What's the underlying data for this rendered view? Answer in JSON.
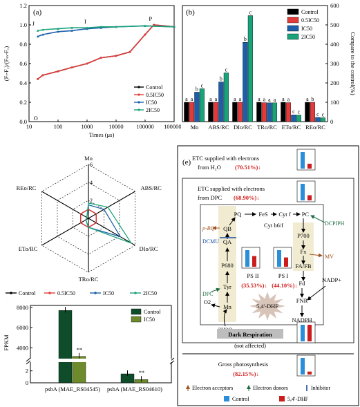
{
  "panel_a": {
    "label": "(a)",
    "ylabel": "(Fₜ-Fₒ)/(Fₘ-Fₒ)",
    "xlabel": "Times (μs)",
    "yticks": [
      "0.0",
      "0.2",
      "0.4",
      "0.6",
      "0.8",
      "1.0",
      "1.2"
    ],
    "xticks": [
      "10",
      "100",
      "1000",
      "10000",
      "100000",
      "1000000"
    ],
    "points": [
      "O",
      "J",
      "I",
      "P"
    ],
    "legend": [
      "Control",
      "0.5IC50",
      "IC50",
      "2IC50"
    ]
  },
  "panel_b": {
    "label": "(b)",
    "ylabel": "Compare to the control(%)",
    "yticks": [
      "0",
      "100",
      "200",
      "300",
      "400",
      "500",
      "600"
    ],
    "legend": [
      "Control",
      "0.5IC50",
      "IC50",
      "2IC50"
    ]
  },
  "panel_c": {
    "label": "(c)",
    "axes": [
      "Mo",
      "ABS/RC",
      "DIo/RC",
      "TRo/RC",
      "ETo/RC",
      "REo/RC"
    ],
    "rings": [
      "2",
      "4",
      "6"
    ],
    "legend": [
      "Control",
      "0.5IC50",
      "IC50",
      "2IC50"
    ]
  },
  "panel_d": {
    "label": "(d)",
    "ylabel": "FPKM",
    "yticks_top": [
      "4000",
      "6000",
      "8000"
    ],
    "yticks_bottom": [
      "0",
      "2"
    ],
    "legend": [
      "Control",
      "IC50"
    ],
    "sig": [
      "**",
      "**"
    ],
    "genes": [
      "psbA (MAE_RS04545)",
      "psbA (MAE_RS04610)"
    ]
  },
  "panel_e": {
    "label": "(e)",
    "h2o_title": "ETC supplied with electrons from H₂O",
    "h2o_pct": "(70.51%)",
    "dpc_title": "ETC supplied with electrons from DPC",
    "dpc_pct": "(68.90%)",
    "nodes": {
      "pq": "PQ",
      "fes": "FeS",
      "cytf": "Cyt f",
      "pc": "PC",
      "cytb6f": "Cyt b6/f",
      "qb": "QB",
      "qa": "QA",
      "p680": "P680",
      "tyr": "Tyr",
      "mn": "Mn",
      "p700": "P700",
      "fx": "Fx",
      "fafb": "FA/FB",
      "fd": "Fd",
      "fnr": "FNR",
      "nadph": "NADPH",
      "nadp": "NADP+",
      "o2": "O2",
      "h2o": "2H2O"
    },
    "psii": "PS II",
    "psii_pct": "(35.53%)",
    "psi": "PS I",
    "psi_pct": "(44.10%)",
    "compound": "5,4'-DHF",
    "labels": {
      "pbq": "p-BQ",
      "dcmu": "DCMU",
      "dpc": "DPC",
      "dcpiph": "DCPIPH",
      "mv": "MV"
    },
    "dark": "Dark Respiration",
    "dark_note": "(not affected)",
    "gross": "Gross photosynthesis",
    "gross_pct": "(82.15%)",
    "key": [
      "Electron acceptors",
      "Electron donors",
      "Inhibitor",
      "Control",
      "5,4'-DHF"
    ]
  },
  "chart_data": [
    {
      "type": "line",
      "title": "",
      "xlabel": "Times (μs)",
      "ylabel": "(Ft-Fo)/(Fm-Fo)",
      "xscale": "log",
      "xlim": [
        10,
        1000000
      ],
      "ylim": [
        0,
        1.2
      ],
      "series": [
        {
          "name": "Control",
          "x": [
            20,
            30,
            100,
            300,
            1000,
            3000,
            10000,
            30000,
            100000,
            200000,
            1000000
          ],
          "values": [
            0.44,
            0.48,
            0.52,
            0.56,
            0.6,
            0.66,
            0.68,
            0.72,
            0.9,
            1.0,
            0.98
          ]
        },
        {
          "name": "0.5IC50",
          "x": [
            20,
            30,
            100,
            300,
            1000,
            3000,
            10000,
            30000,
            100000,
            200000,
            1000000
          ],
          "values": [
            0.44,
            0.48,
            0.52,
            0.56,
            0.6,
            0.66,
            0.68,
            0.72,
            0.9,
            1.0,
            0.98
          ]
        },
        {
          "name": "IC50",
          "x": [
            20,
            30,
            100,
            300,
            1000,
            3000,
            10000,
            100000,
            1000000
          ],
          "values": [
            0.88,
            0.9,
            0.93,
            0.94,
            0.96,
            0.97,
            0.98,
            0.99,
            0.98
          ]
        },
        {
          "name": "2IC50",
          "x": [
            20,
            30,
            100,
            300,
            1000,
            3000,
            10000,
            100000,
            1000000
          ],
          "values": [
            0.94,
            0.95,
            0.96,
            0.97,
            0.97,
            0.98,
            0.98,
            0.99,
            0.98
          ]
        }
      ]
    },
    {
      "type": "bar",
      "categories": [
        "Mo",
        "ABS/RC",
        "DIo/RC",
        "TRo/RC",
        "ETo/RC",
        "REo/RC"
      ],
      "ylabel": "Compare to the control(%)",
      "ylim": [
        0,
        600
      ],
      "series": [
        {
          "name": "Control",
          "values": [
            100,
            100,
            100,
            100,
            100,
            100
          ]
        },
        {
          "name": "0.5IC50",
          "values": [
            100,
            100,
            100,
            98,
            98,
            100
          ]
        },
        {
          "name": "IC50",
          "values": [
            152,
            205,
            410,
            97,
            35,
            22
          ]
        },
        {
          "name": "2IC50",
          "values": [
            170,
            252,
            548,
            97,
            34,
            20
          ]
        }
      ],
      "letters": [
        [
          "a",
          "a",
          "b",
          "c"
        ],
        [
          "a",
          "a",
          "b",
          "c"
        ],
        [
          "a",
          "a",
          "b",
          "c"
        ],
        [
          "a",
          "a",
          "a",
          "a"
        ],
        [
          "a",
          "a",
          "c",
          "c"
        ],
        [
          "a",
          "b",
          "c",
          "c"
        ]
      ]
    },
    {
      "type": "radar",
      "categories": [
        "Mo",
        "ABS/RC",
        "DIo/RC",
        "TRo/RC",
        "ETo/RC",
        "REo/RC"
      ],
      "rmax": 6,
      "series": [
        {
          "name": "Control",
          "values": [
            1,
            1,
            1,
            1,
            1,
            1
          ]
        },
        {
          "name": "0.5IC50",
          "values": [
            1,
            1,
            1,
            1,
            1,
            1
          ]
        },
        {
          "name": "IC50",
          "values": [
            1.5,
            2.0,
            4.1,
            1,
            0.35,
            0.2
          ]
        },
        {
          "name": "2IC50",
          "values": [
            1.7,
            2.5,
            5.5,
            1,
            0.34,
            0.2
          ]
        }
      ]
    },
    {
      "type": "bar",
      "categories": [
        "psbA (MAE_RS04545)",
        "psbA (MAE_RS04610)"
      ],
      "ylabel": "FPKM",
      "series": [
        {
          "name": "Control",
          "values": [
            7700,
            1.5
          ]
        },
        {
          "name": "IC50",
          "values": [
            3150,
            0.55
          ]
        }
      ]
    },
    {
      "type": "bar",
      "categories": [
        "H2O",
        "DPC",
        "PS II",
        "PS I",
        "Dark Respiration",
        "Gross photosynthesis"
      ],
      "series": [
        {
          "name": "Control",
          "values": [
            100,
            100,
            100,
            100,
            100,
            100
          ]
        },
        {
          "name": "5,4'-DHF",
          "values": [
            29.49,
            31.1,
            64.47,
            55.9,
            100,
            17.85
          ]
        }
      ]
    }
  ],
  "colors": {
    "control": "#000000",
    "half": "#e23b3b",
    "ic50": "#1b5faa",
    "two": "#1aa37a",
    "d_control": "#0f4d2a",
    "d_ic50": "#6d8a2c",
    "e_control": "#2a8fd8",
    "e_dhf": "#cc1c1c",
    "pct_red": "#d21b1b"
  }
}
